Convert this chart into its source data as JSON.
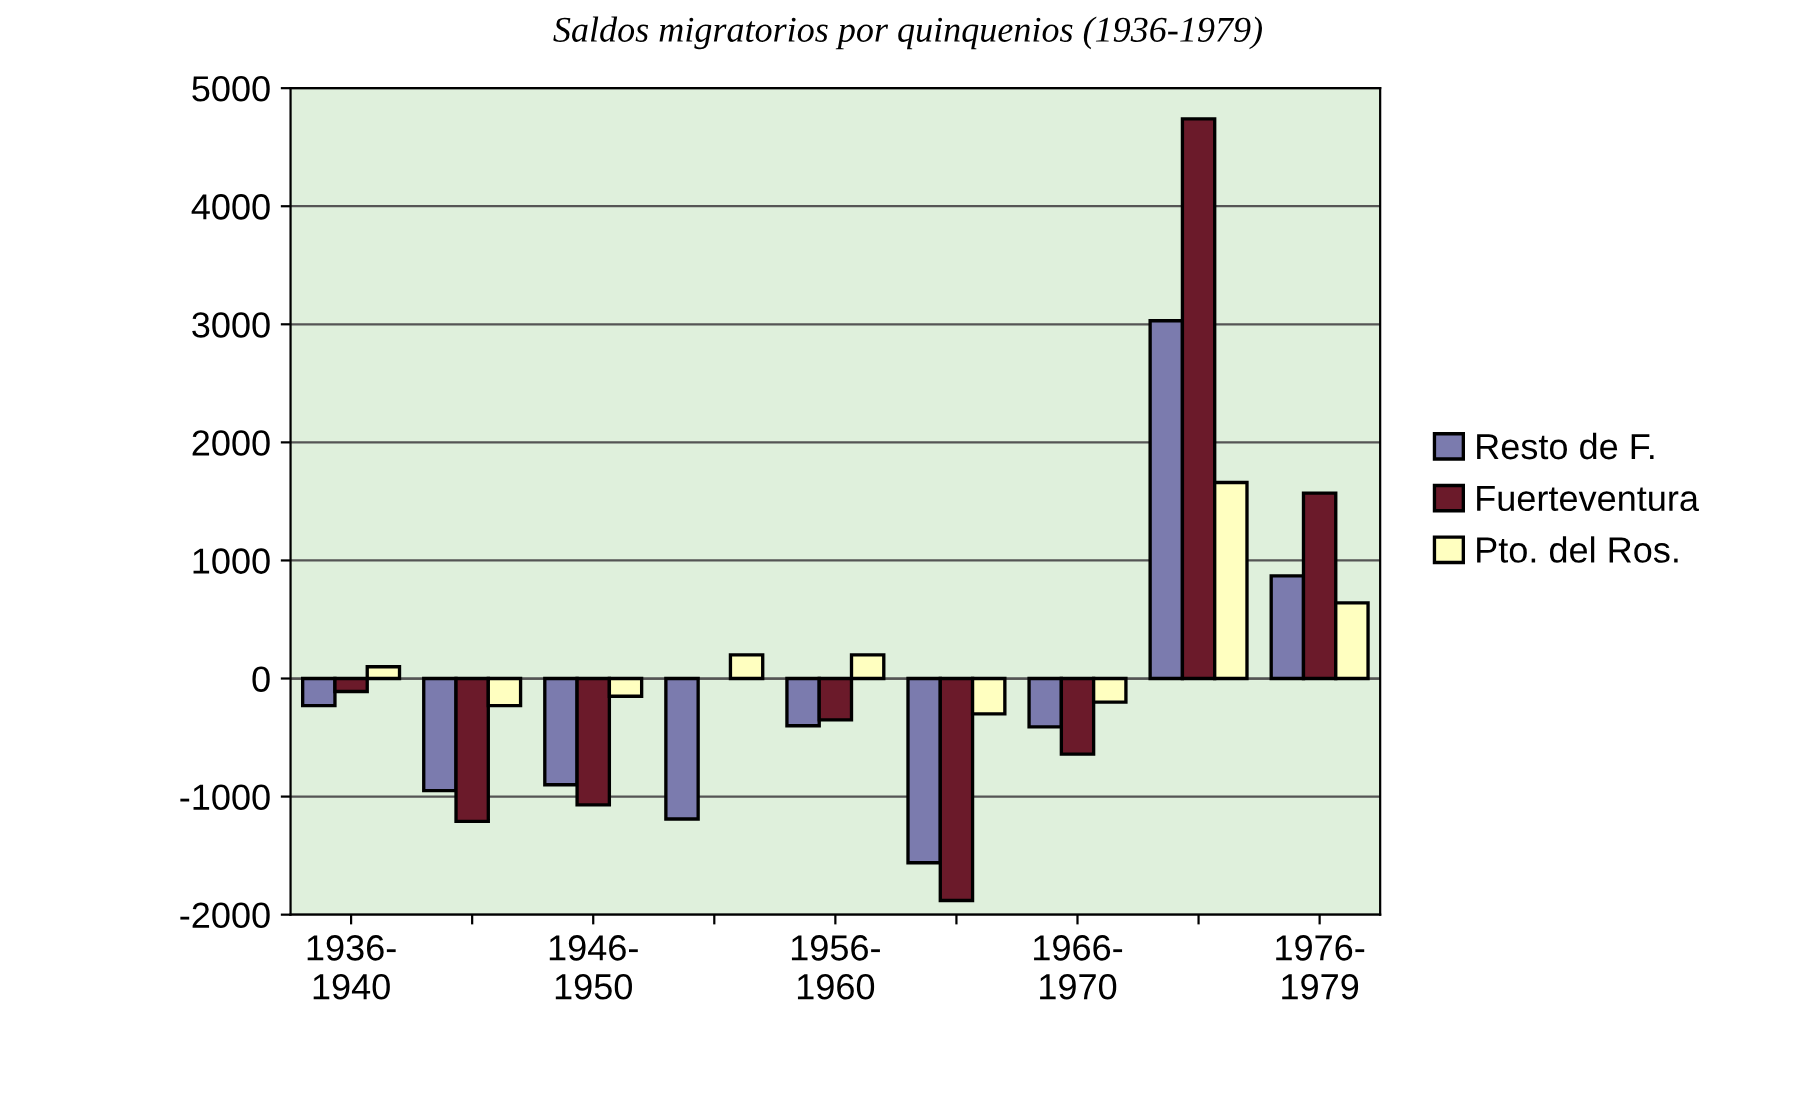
{
  "chart_data": {
    "type": "bar",
    "title": "Saldos migratorios por quinquenios (1936-1979)",
    "categories": [
      "1936-1940",
      null,
      "1946-1950",
      null,
      "1956-1960",
      null,
      "1966-1970",
      null,
      "1976-1979"
    ],
    "series": [
      {
        "name": "Resto de F.",
        "color": "#7b7bae",
        "values": [
          -230,
          -950,
          -900,
          -1190,
          -400,
          -1560,
          -410,
          3030,
          870
        ]
      },
      {
        "name": "Fuerteventura",
        "color": "#6b1a2a",
        "values": [
          -110,
          -1210,
          -1070,
          null,
          -350,
          -1880,
          -640,
          4740,
          1570
        ]
      },
      {
        "name": "Pto. del Ros.",
        "color": "#ffffc0",
        "values": [
          100,
          -230,
          -150,
          200,
          200,
          -300,
          -200,
          1660,
          640
        ]
      }
    ],
    "ylim": [
      -2000,
      5000
    ],
    "yticks": [
      -2000,
      -1000,
      0,
      1000,
      2000,
      3000,
      4000,
      5000
    ],
    "grid": "y",
    "legend": "right"
  }
}
